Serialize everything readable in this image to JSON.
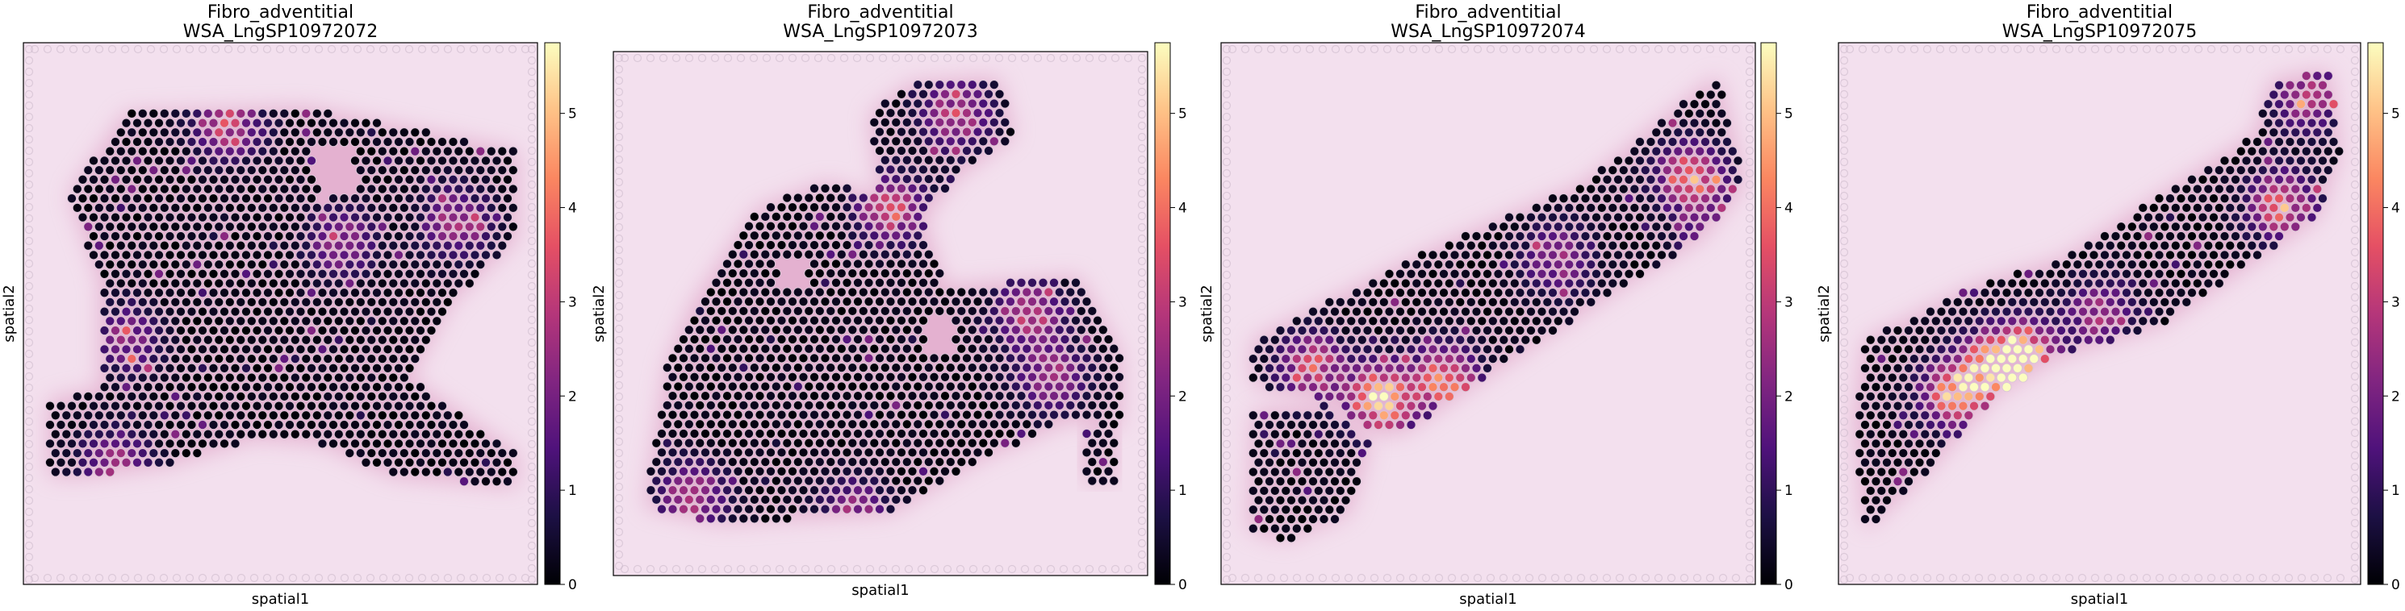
{
  "colorbar": {
    "ticks": [
      0,
      1,
      2,
      3,
      4,
      5
    ],
    "max": 5.75,
    "colormap": [
      "#000004",
      "#1c1044",
      "#4f127b",
      "#812581",
      "#b5367a",
      "#e55064",
      "#fb8761",
      "#fec287",
      "#fcfdbf"
    ]
  },
  "tissue": {
    "background": "#f3e0ee",
    "stain": "#d98cb8",
    "spot_stroke": "#c9b7c9"
  },
  "chart_data": [
    {
      "type": "heatmap",
      "title": [
        "Fibro_adventitial",
        "WSA_LngSP10972072"
      ],
      "xlabel": "spatial1",
      "ylabel": "spatial2",
      "colorbar_ticks": [
        0,
        1,
        2,
        3,
        4,
        5
      ],
      "value_range": [
        0,
        5.75
      ],
      "description": "spot_values"
    },
    {
      "type": "heatmap",
      "title": [
        "Fibro_adventitial",
        "WSA_LngSP10972073"
      ],
      "xlabel": "spatial1",
      "ylabel": "spatial2",
      "colorbar_ticks": [
        0,
        1,
        2,
        3,
        4,
        5
      ],
      "value_range": [
        0,
        5.75
      ]
    },
    {
      "type": "heatmap",
      "title": [
        "Fibro_adventitial",
        "WSA_LngSP10972074"
      ],
      "xlabel": "spatial1",
      "ylabel": "spatial2",
      "colorbar_ticks": [
        0,
        1,
        2,
        3,
        4,
        5
      ],
      "value_range": [
        0,
        5.75
      ]
    },
    {
      "type": "heatmap",
      "title": [
        "Fibro_adventitial",
        "WSA_LngSP10972075"
      ],
      "xlabel": "spatial1",
      "ylabel": "spatial2",
      "colorbar_ticks": [
        0,
        1,
        2,
        3,
        4,
        5
      ],
      "value_range": [
        0,
        5.75
      ]
    }
  ]
}
